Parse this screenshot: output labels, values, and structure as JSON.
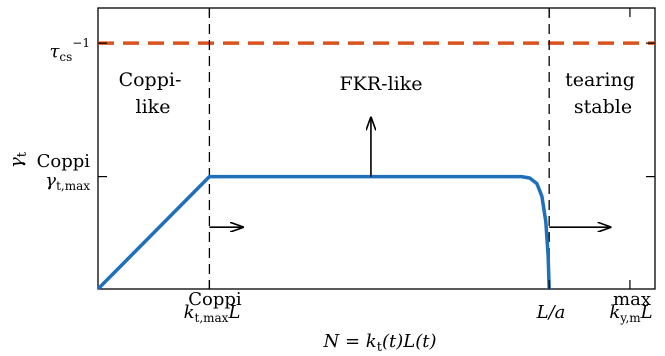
{
  "chart_data": {
    "type": "line",
    "title": "",
    "xlabel": {
      "lhs": "N",
      "eq": " = ",
      "k": "k",
      "k_sub": "t",
      "arg1": "(t)",
      "L": "L",
      "arg2": "(t)"
    },
    "ylabel": {
      "main": "γ",
      "sub": "t"
    },
    "xlim": [
      0,
      1
    ],
    "ylim": [
      0,
      1
    ],
    "x_ticks": [
      {
        "id": "coppi",
        "x": 0.2,
        "main": "k",
        "sub": "t,max",
        "sup": "Coppi",
        "suffix": "L"
      },
      {
        "id": "la",
        "x": 0.81,
        "main": "L/a"
      },
      {
        "id": "kymax",
        "x": 0.955,
        "main": "k",
        "sub": "y,m",
        "sup": "max",
        "suffix": "L"
      }
    ],
    "y_ticks": [
      {
        "id": "tau",
        "y": 0.875,
        "main": "τ",
        "sub": "cs",
        "sup": "−1"
      },
      {
        "id": "gamma",
        "y": 0.4,
        "main": "γ",
        "sub": "t,max",
        "sup": "Coppi"
      }
    ],
    "series": [
      {
        "color": "#1f6fba",
        "x": [
          0,
          0.2,
          0.76,
          0.775,
          0.788,
          0.797,
          0.804,
          0.808,
          0.81
        ],
        "y": [
          0,
          0.4,
          0.4,
          0.395,
          0.375,
          0.33,
          0.24,
          0.12,
          0
        ]
      }
    ],
    "reference_lines": [
      {
        "orientation": "horizontal",
        "y": 0.875,
        "color": "#d9531e",
        "style": "dashed"
      },
      {
        "orientation": "vertical",
        "x": 0.2,
        "color": "#000000",
        "style": "dashed"
      },
      {
        "orientation": "vertical",
        "x": 0.81,
        "color": "#000000",
        "style": "dashed"
      }
    ],
    "regions": [
      {
        "id": "coppi",
        "lines": [
          "Coppi-",
          "like"
        ]
      },
      {
        "id": "fkr",
        "lines": [
          "FKR-like"
        ]
      },
      {
        "id": "tearing",
        "lines": [
          "tearing",
          "stable"
        ]
      }
    ],
    "arrows": [
      {
        "id": "up",
        "x1": 0.49,
        "y1": 0.4,
        "x2": 0.49,
        "y2": 0.61
      },
      {
        "id": "right-small",
        "x1": 0.2,
        "y1": 0.22,
        "x2": 0.26,
        "y2": 0.22
      },
      {
        "id": "right-large",
        "x1": 0.81,
        "y1": 0.22,
        "x2": 0.92,
        "y2": 0.22
      }
    ]
  }
}
